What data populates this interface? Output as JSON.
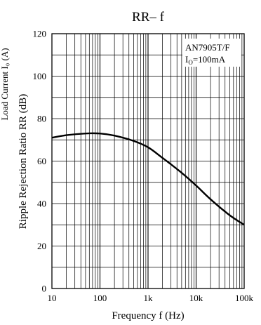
{
  "page": {
    "cut_off_left_label": "Load Current  I₀ (A)"
  },
  "chart_data": {
    "type": "line",
    "title": "RR– f",
    "xlabel": "Frequency  f (Hz)",
    "ylabel": "Ripple Rejection Ratio  RR (dB)",
    "x_scale": "log",
    "xlim": [
      10,
      100000
    ],
    "ylim": [
      0,
      120
    ],
    "x_ticks": [
      10,
      100,
      1000,
      10000,
      100000
    ],
    "x_tick_labels": [
      "10",
      "100",
      "1k",
      "10k",
      "100k"
    ],
    "y_ticks": [
      0,
      20,
      40,
      60,
      80,
      100,
      120
    ],
    "y_tick_labels": [
      "0",
      "20",
      "40",
      "60",
      "80",
      "100",
      "120"
    ],
    "grid": true,
    "legend": {
      "line1": "AN7905T/F",
      "line2_symbol": "I",
      "line2_sub": "O",
      "line2_rest": "=100mA",
      "placement": "top-right"
    },
    "series": [
      {
        "x": [
          10,
          20,
          50,
          100,
          200,
          500,
          1000,
          2000,
          5000,
          10000,
          20000,
          50000,
          100000
        ],
        "y": [
          71,
          72.2,
          73,
          73,
          72,
          69.5,
          66.5,
          61.5,
          54.5,
          48.5,
          42,
          34.5,
          30
        ]
      }
    ],
    "colors": {
      "line": "#000000",
      "grid": "#000000",
      "background": "#ffffff"
    }
  }
}
